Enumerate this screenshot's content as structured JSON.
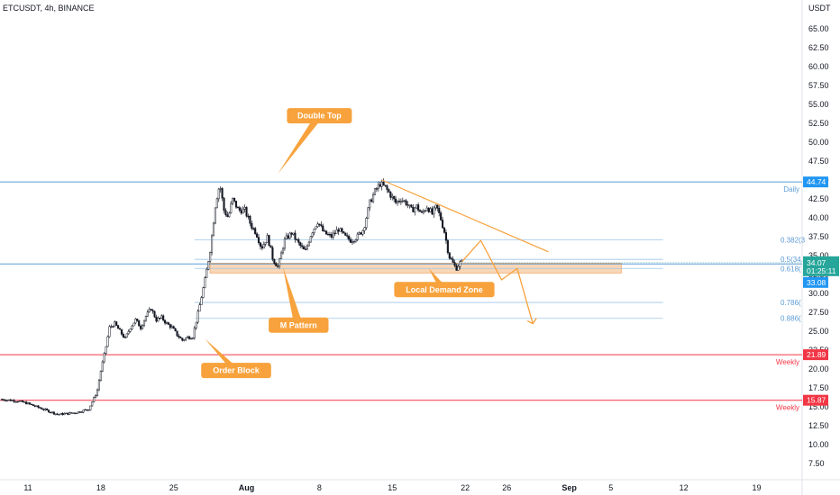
{
  "header": {
    "symbol": "ETCUSDT, 4h, BINANCE"
  },
  "chart_data": {
    "type": "candlestick",
    "y_axis_unit": "USDT",
    "ylim": [
      5,
      70
    ],
    "y_ticks": [
      7.5,
      10,
      12.5,
      15,
      17.5,
      20,
      22.5,
      25,
      27.5,
      30,
      32.5,
      35,
      37.5,
      40,
      42.5,
      45,
      47.5,
      50,
      52.5,
      55,
      57.5,
      60,
      62.5,
      65
    ],
    "y_tick_labels": [
      "7.50",
      "10.00",
      "12.50",
      "15.00",
      "17.50",
      "20.00",
      "22.50",
      "25.00",
      "27.50",
      "30.00",
      "32.50",
      "35.00",
      "37.50",
      "40.00",
      "42.50",
      "45.00",
      "47.50",
      "50.00",
      "52.50",
      "55.00",
      "57.50",
      "60.00",
      "62.50",
      "65.00"
    ],
    "x_ticks": [
      {
        "label": "11",
        "day": 0
      },
      {
        "label": "18",
        "day": 7
      },
      {
        "label": "25",
        "day": 14
      },
      {
        "label": "Aug",
        "day": 21
      },
      {
        "label": "8",
        "day": 28
      },
      {
        "label": "15",
        "day": 35
      },
      {
        "label": "22",
        "day": 42
      },
      {
        "label": "26",
        "day": 46
      },
      {
        "label": "Sep",
        "day": 52
      },
      {
        "label": "5",
        "day": 56
      },
      {
        "label": "12",
        "day": 63
      },
      {
        "label": "19",
        "day": 70
      }
    ],
    "price_path": [
      [
        -2.5,
        16.0
      ],
      [
        -1,
        15.8
      ],
      [
        0,
        15.5
      ],
      [
        1,
        15.0
      ],
      [
        2,
        14.5
      ],
      [
        3,
        14.0
      ],
      [
        4,
        14.1
      ],
      [
        5,
        14.3
      ],
      [
        6,
        14.7
      ],
      [
        6.8,
        17.0
      ],
      [
        7.2,
        20.0
      ],
      [
        7.6,
        22.5
      ],
      [
        8,
        25.5
      ],
      [
        8.5,
        26.0
      ],
      [
        9,
        25.0
      ],
      [
        9.5,
        24.0
      ],
      [
        10,
        25.5
      ],
      [
        10.5,
        26.5
      ],
      [
        11,
        25.5
      ],
      [
        11.5,
        27.0
      ],
      [
        12,
        28.0
      ],
      [
        12.5,
        26.5
      ],
      [
        13,
        26.8
      ],
      [
        13.5,
        26.0
      ],
      [
        14,
        25.5
      ],
      [
        14.5,
        24.5
      ],
      [
        15,
        23.8
      ],
      [
        15.5,
        24.2
      ],
      [
        16,
        24.3
      ],
      [
        16.6,
        28.0
      ],
      [
        17.2,
        32.0
      ],
      [
        17.7,
        36.0
      ],
      [
        18.2,
        42.0
      ],
      [
        18.6,
        44.5
      ],
      [
        19,
        41.0
      ],
      [
        19.4,
        40.0
      ],
      [
        19.8,
        42.5
      ],
      [
        20.4,
        41.0
      ],
      [
        21,
        41.0
      ],
      [
        21.6,
        39.0
      ],
      [
        22.1,
        38.0
      ],
      [
        22.6,
        36.0
      ],
      [
        23.2,
        37.5
      ],
      [
        23.7,
        34.5
      ],
      [
        24.2,
        33.5
      ],
      [
        24.8,
        37.0
      ],
      [
        25.5,
        38.0
      ],
      [
        26.2,
        36.5
      ],
      [
        26.8,
        35.5
      ],
      [
        27.4,
        38.0
      ],
      [
        28,
        39.5
      ],
      [
        28.6,
        38.0
      ],
      [
        29.3,
        37.5
      ],
      [
        30,
        38.5
      ],
      [
        30.6,
        37.5
      ],
      [
        31.2,
        37.0
      ],
      [
        31.8,
        37.5
      ],
      [
        32.4,
        38.5
      ],
      [
        33.0,
        42.0
      ],
      [
        33.5,
        43.5
      ],
      [
        34.0,
        44.5
      ],
      [
        34.5,
        44.0
      ],
      [
        35.0,
        43.0
      ],
      [
        35.5,
        42.0
      ],
      [
        36.0,
        42.5
      ],
      [
        36.5,
        42.0
      ],
      [
        37.0,
        41.0
      ],
      [
        37.5,
        41.5
      ],
      [
        38.0,
        40.5
      ],
      [
        38.5,
        41.5
      ],
      [
        39.0,
        40.5
      ],
      [
        39.4,
        41.5
      ],
      [
        39.8,
        40.0
      ],
      [
        40.2,
        38.0
      ],
      [
        40.6,
        35.0
      ],
      [
        41.0,
        34.0
      ],
      [
        41.3,
        33.3
      ],
      [
        41.7,
        34.1
      ]
    ],
    "price_range": [
      13.6,
      45.2
    ],
    "levels": [
      {
        "price": 44.74,
        "label": "Daily",
        "badge": "44.74",
        "color": "#5b9bd5"
      },
      {
        "price": 33.9,
        "label": "",
        "badge": "",
        "color": "#5b9bd5"
      },
      {
        "price": 21.89,
        "label": "Weekly",
        "badge": "21.89",
        "color": "#f23645"
      },
      {
        "price": 15.87,
        "label": "Weekly",
        "badge": "15.87",
        "color": "#f23645"
      }
    ],
    "fib_levels": [
      {
        "price": 37.1,
        "label": "0.382(3"
      },
      {
        "price": 34.5,
        "label": "0.5(34."
      },
      {
        "price": 33.3,
        "label": "0.618("
      },
      {
        "price": 28.8,
        "label": "0.786("
      },
      {
        "price": 26.7,
        "label": "0.886("
      }
    ],
    "demand_zone": {
      "from_day": 17.5,
      "to_day": 57,
      "top": 34.0,
      "bottom": 32.7
    },
    "current_price": {
      "value": 34.07,
      "label": "34.07",
      "countdown": "01:25:11"
    },
    "secondary_badge": "33.08",
    "annotations": [
      {
        "text": "Double Top",
        "day": 28,
        "price": 53.5,
        "tip_day": 24.0,
        "tip_price": 45.8
      },
      {
        "text": "M Pattern",
        "day": 26,
        "price": 25.8,
        "tip_day": 24.5,
        "tip_price": 33.5
      },
      {
        "text": "Local Demand Zone",
        "day": 40,
        "price": 30.5,
        "tip_day": 38.5,
        "tip_price": 33.3
      },
      {
        "text": "Order Block",
        "day": 20,
        "price": 19.8,
        "tip_day": 17.0,
        "tip_price": 24.0
      }
    ],
    "resistance_trendline": [
      [
        34.0,
        45.0
      ],
      [
        50.0,
        35.5
      ]
    ],
    "projection_path": [
      [
        41.7,
        34.2
      ],
      [
        43.5,
        37.0
      ],
      [
        45.5,
        31.8
      ],
      [
        47,
        33.3
      ],
      [
        48.5,
        26.0
      ]
    ]
  },
  "colors": {
    "bull": "#26a69a",
    "bear": "#ef5350",
    "candle": "#131722",
    "annotation": "#f7a23c",
    "zone": "#f7c597",
    "price_badge": "#26a69a",
    "blue_badge": "#2196f3"
  }
}
